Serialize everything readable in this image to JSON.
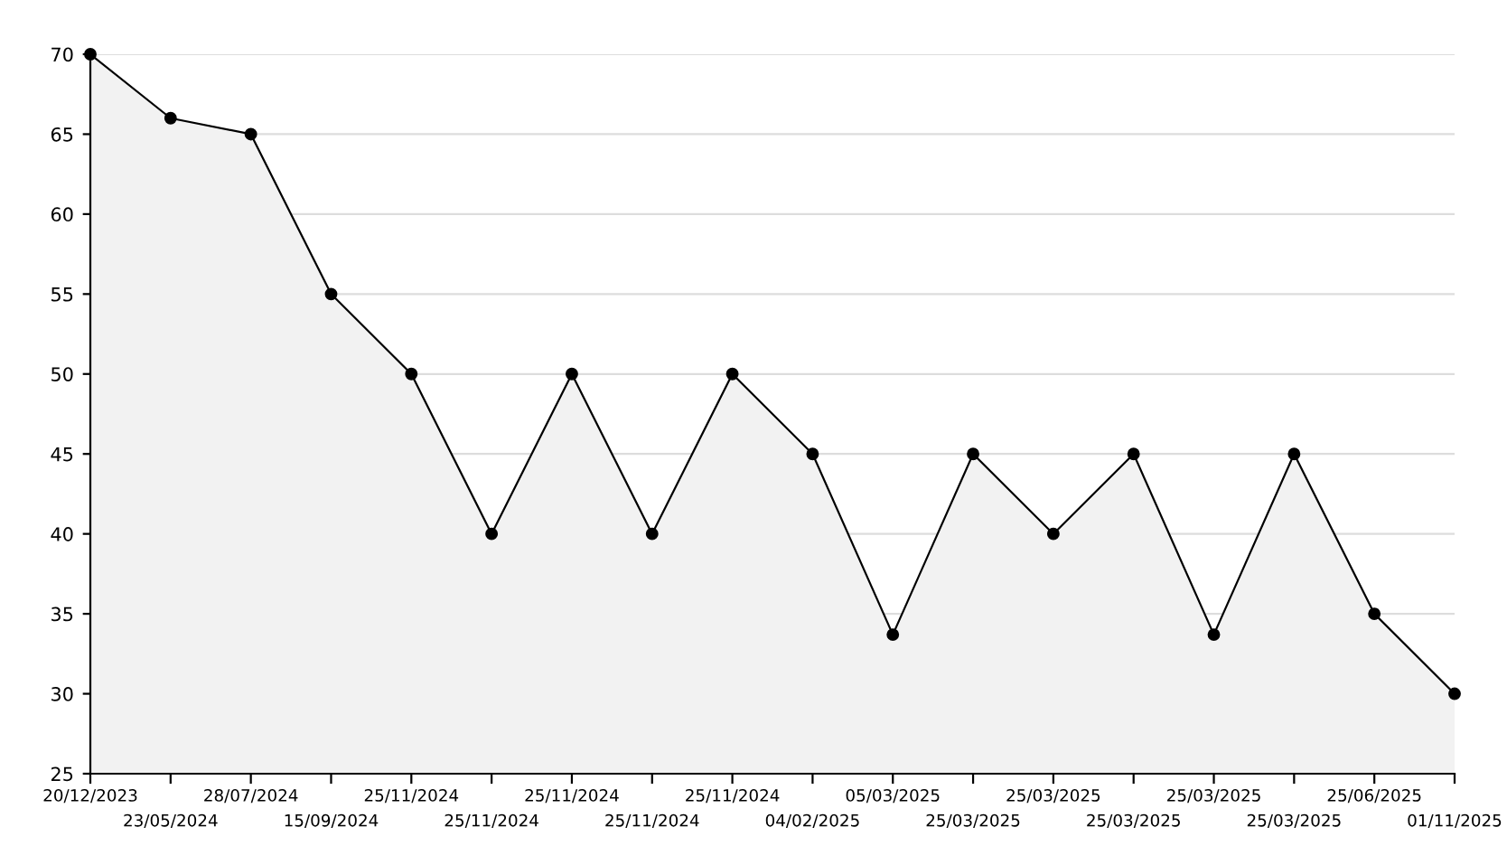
{
  "chart_data": {
    "type": "area",
    "categories": [
      "20/12/2023",
      "23/05/2024",
      "28/07/2024",
      "15/09/2024",
      "25/11/2024",
      "25/11/2024",
      "25/11/2024",
      "25/11/2024",
      "25/11/2024",
      "04/02/2025",
      "05/03/2025",
      "25/03/2025",
      "25/03/2025",
      "25/03/2025",
      "25/03/2025",
      "25/03/2025",
      "25/06/2025",
      "01/11/2025"
    ],
    "series": [
      {
        "color": "#000000",
        "values": [
          70,
          66,
          65,
          55,
          50,
          40,
          50,
          40,
          50,
          45,
          33.7,
          45,
          40,
          45,
          33.7,
          45,
          35,
          30
        ]
      }
    ],
    "ylim": [
      25,
      70
    ],
    "yticks": [
      25,
      30,
      35,
      40,
      45,
      50,
      55,
      60,
      65,
      70
    ],
    "grid": "y",
    "marker": "circle",
    "line_style": "solid"
  }
}
